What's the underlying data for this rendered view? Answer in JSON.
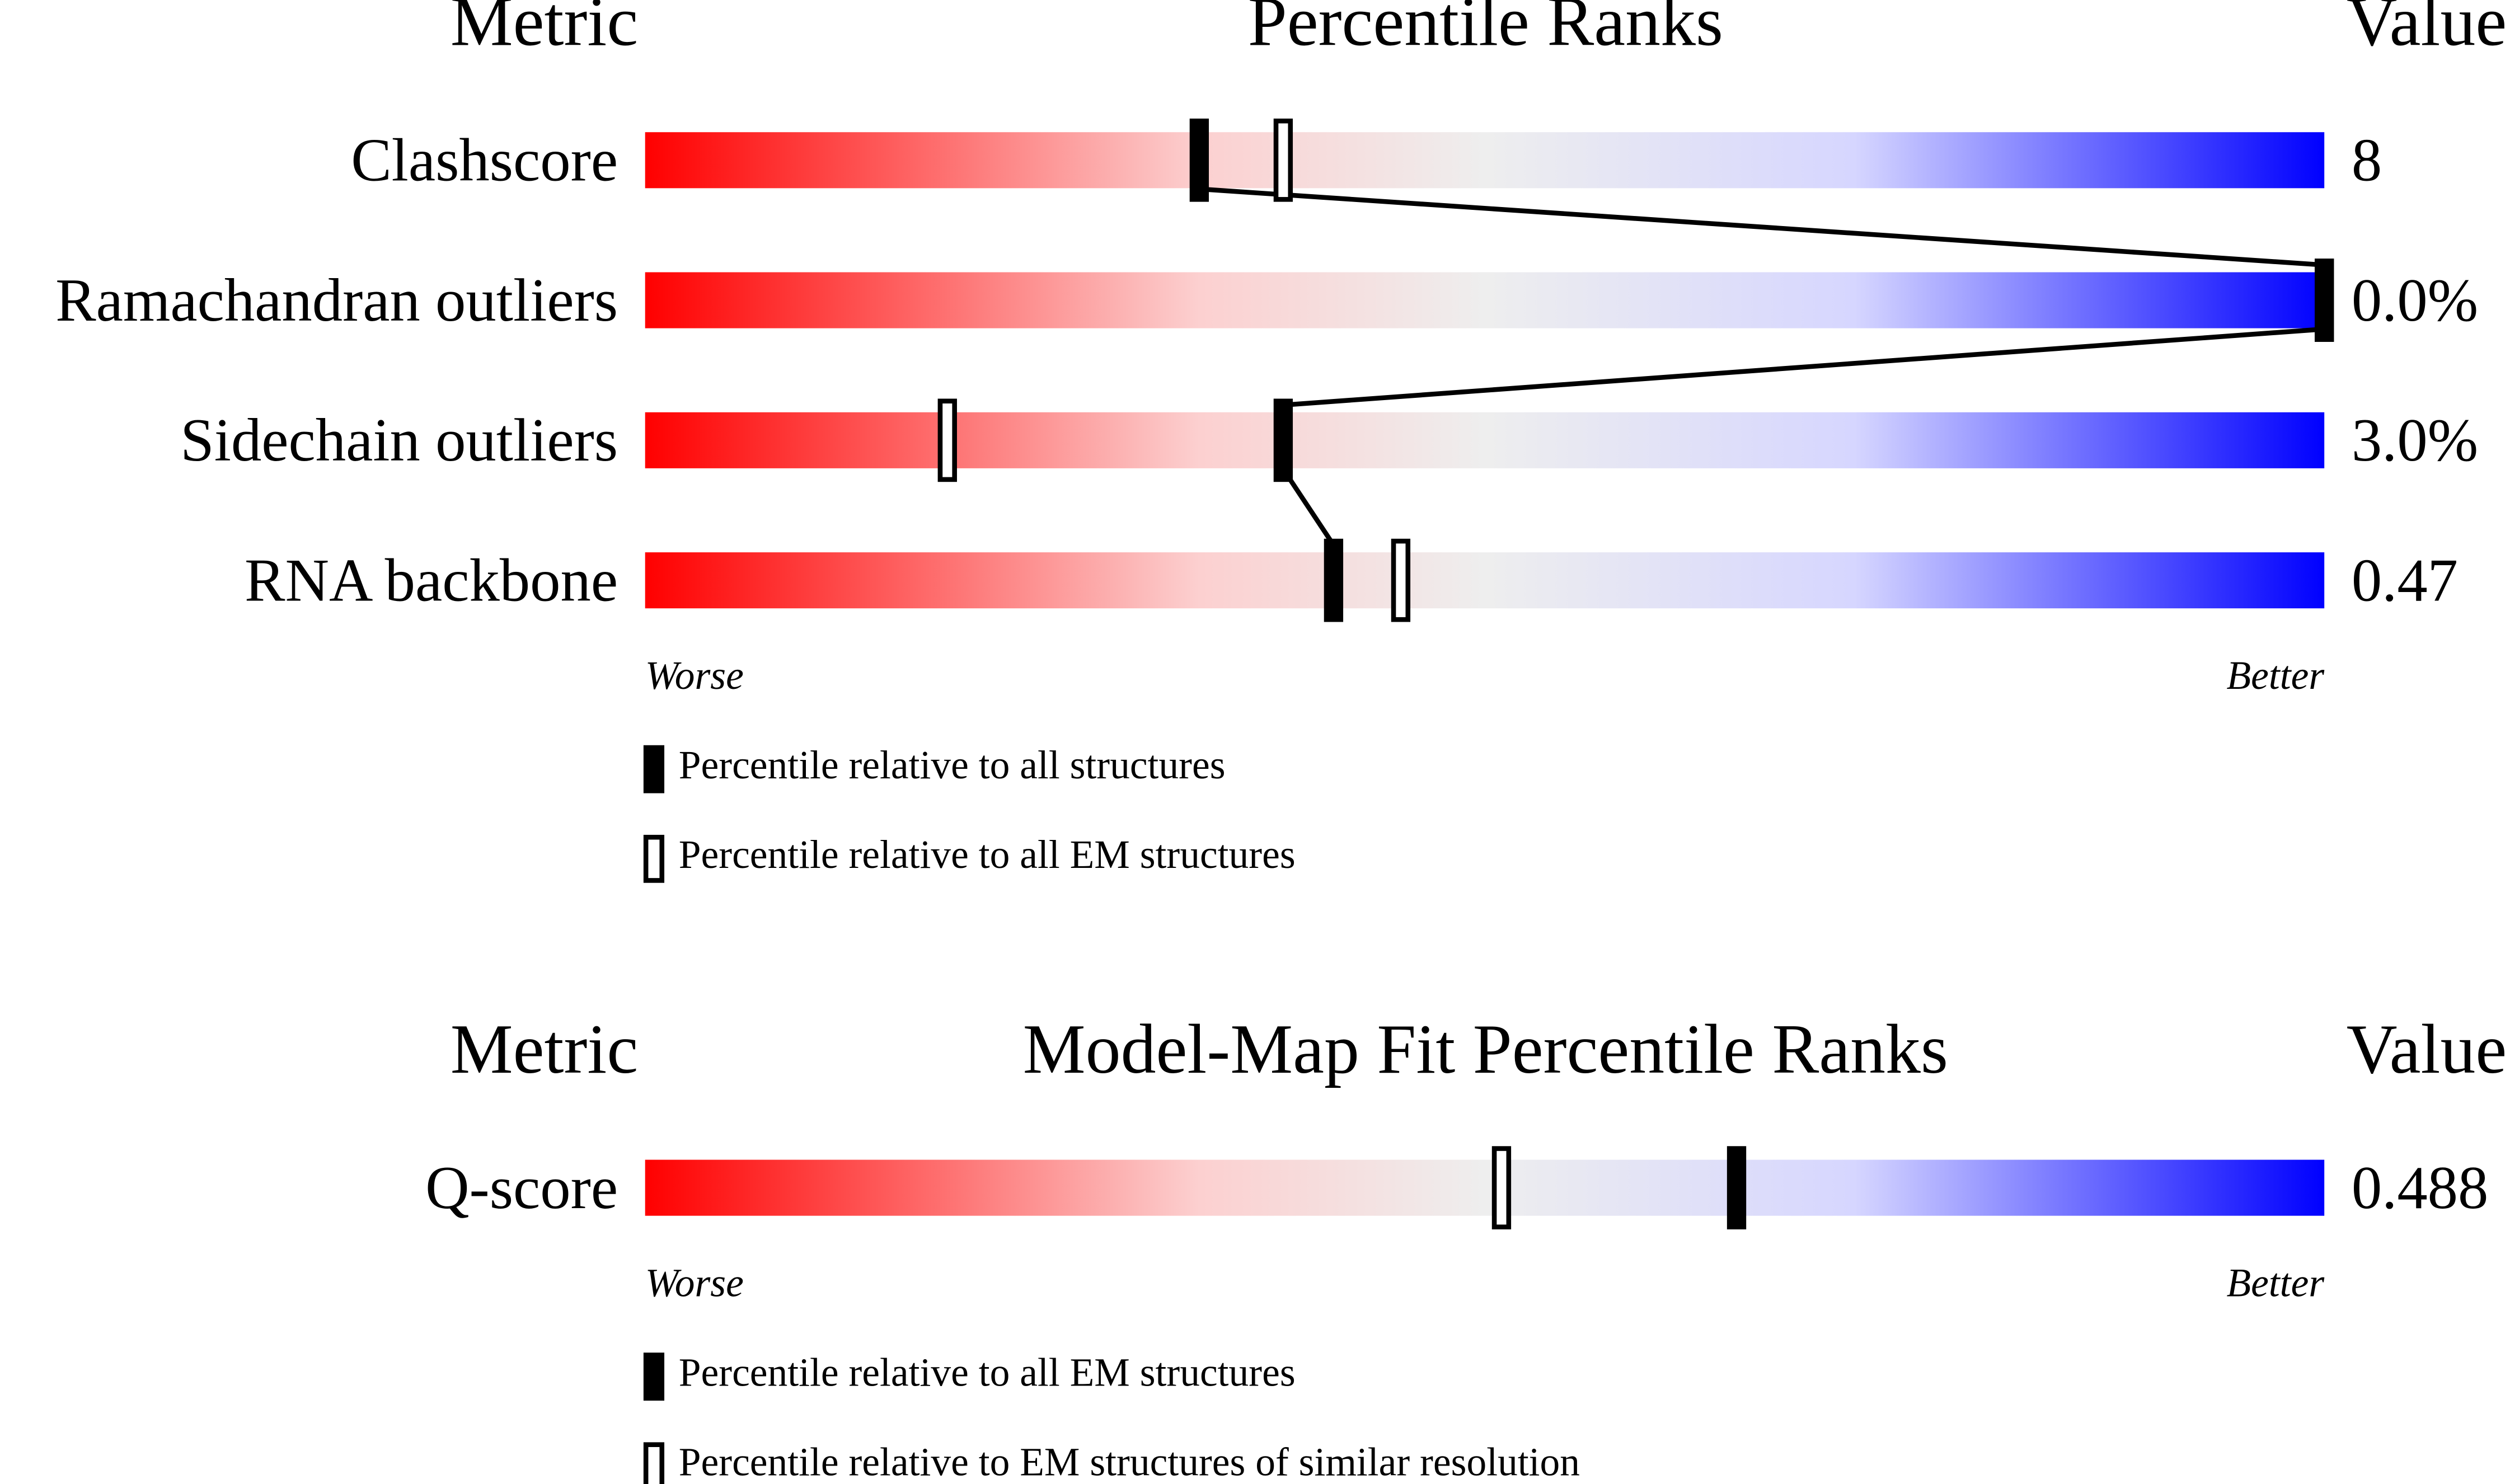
{
  "chart_data": [
    {
      "type": "slider",
      "title": "Percentile Ranks",
      "metric_header": "Metric",
      "value_header": "Value",
      "xlim": [
        0,
        100
      ],
      "categories": [
        "Clashscore",
        "Ramachandran outliers",
        "Sidechain outliers",
        "RNA backbone"
      ],
      "metric_values": [
        "8",
        "0.0%",
        "3.0%",
        "0.47"
      ],
      "series": [
        {
          "name": "Percentile relative to all structures",
          "color": "#000000",
          "marker": "filled",
          "values": [
            33,
            100,
            38,
            41
          ]
        },
        {
          "name": "Percentile relative to all EM structures",
          "color": "#000000",
          "marker": "outline",
          "values": [
            38,
            100,
            18,
            45
          ]
        }
      ],
      "worse_label": "Worse",
      "better_label": "Better"
    },
    {
      "type": "slider",
      "title": "Model-Map Fit Percentile Ranks",
      "metric_header": "Metric",
      "value_header": "Value",
      "xlim": [
        0,
        100
      ],
      "categories": [
        "Q-score"
      ],
      "metric_values": [
        "0.488"
      ],
      "series": [
        {
          "name": "Percentile relative to all EM structures",
          "color": "#000000",
          "marker": "filled",
          "values": [
            65
          ]
        },
        {
          "name": "Percentile relative to EM structures of similar resolution",
          "color": "#000000",
          "marker": "outline",
          "values": [
            51
          ]
        }
      ],
      "worse_label": "Worse",
      "better_label": "Better"
    }
  ]
}
